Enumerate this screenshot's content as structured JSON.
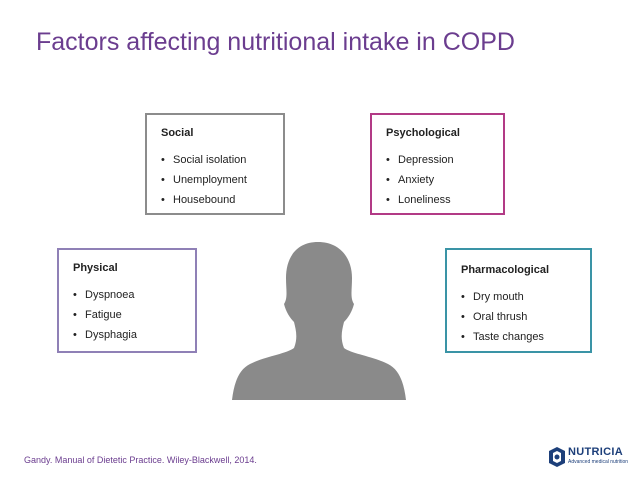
{
  "title": "Factors affecting nutritional intake in COPD",
  "boxes": {
    "social": {
      "heading": "Social",
      "items": [
        "Social isolation",
        "Unemployment",
        "Housebound"
      ],
      "color": "#8c8c8c"
    },
    "psychological": {
      "heading": "Psychological",
      "items": [
        "Depression",
        "Anxiety",
        "Loneliness"
      ],
      "color": "#b23a86"
    },
    "physical": {
      "heading": "Physical",
      "items": [
        "Dyspnoea",
        "Fatigue",
        "Dysphagia"
      ],
      "color": "#8f80b6"
    },
    "pharmacological": {
      "heading": "Pharmacological",
      "items": [
        "Dry mouth",
        "Oral thrush",
        "Taste changes"
      ],
      "color": "#3a94a6"
    }
  },
  "person_icon": "person-silhouette-icon",
  "citation": "Gandy. Manual of Dietetic Practice. Wiley-Blackwell, 2014.",
  "logo": {
    "name": "NUTRICIA",
    "tagline": "Advanced medical nutrition",
    "icon": "nutricia-logo-icon"
  },
  "colors": {
    "title": "#6b3d8f",
    "silhouette": "#8a8a8a",
    "logo": "#1d3f7a"
  }
}
